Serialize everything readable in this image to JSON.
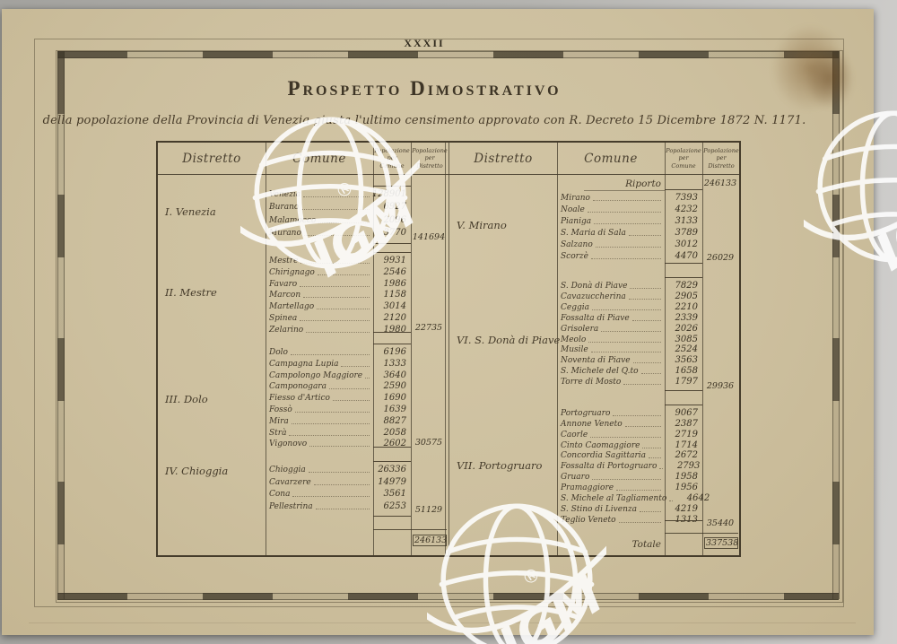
{
  "scan": {
    "page_number_label": "XXXII",
    "title": "Prospetto Dimostrativo",
    "subtitle": "della popolazione della Provincia di Venezia giusta l'ultimo censimento approvato con R. Decreto 15 Dicembre 1872 N. 1171.",
    "watermark_text": "IGM",
    "watermark_reg": "®"
  },
  "table": {
    "column_headers": {
      "distretto": "Distretto",
      "comune": "Comune",
      "pop_comune_lines": [
        "Popolazione",
        "per",
        "Comune"
      ],
      "pop_distretto_lines": [
        "Popolazione",
        "per",
        "Distretto"
      ]
    },
    "left": {
      "groups": [
        {
          "district": "I. Venezia",
          "rows": [
            [
              "Venezia",
              "128901"
            ],
            [
              "Burano",
              "6927"
            ],
            [
              "Malamocco",
              "2096"
            ],
            [
              "Murano",
              "3770"
            ]
          ],
          "total": "141694"
        },
        {
          "district": "II. Mestre",
          "rows": [
            [
              "Mestre",
              "9931"
            ],
            [
              "Chirignago",
              "2546"
            ],
            [
              "Favaro",
              "1986"
            ],
            [
              "Marcon",
              "1158"
            ],
            [
              "Martellago",
              "3014"
            ],
            [
              "Spinea",
              "2120"
            ],
            [
              "Zelarino",
              "1980"
            ]
          ],
          "total": "22735"
        },
        {
          "district": "III. Dolo",
          "rows": [
            [
              "Dolo",
              "6196"
            ],
            [
              "Campagna Lupia",
              "1333"
            ],
            [
              "Campolongo Maggiore",
              "3640"
            ],
            [
              "Camponogara",
              "2590"
            ],
            [
              "Fiesso d'Artico",
              "1690"
            ],
            [
              "Fossò",
              "1639"
            ],
            [
              "Mira",
              "8827"
            ],
            [
              "Strà",
              "2058"
            ],
            [
              "Vigonovo",
              "2602"
            ]
          ],
          "total": "30575"
        },
        {
          "district": "IV. Chioggia",
          "rows": [
            [
              "Chioggia",
              "26336"
            ],
            [
              "Cavarzere",
              "14979"
            ],
            [
              "Cona",
              "3561"
            ],
            [
              "Pellestrina",
              "6253"
            ]
          ],
          "total": "51129"
        }
      ],
      "grand_total": "246133"
    },
    "right": {
      "riporto_label": "Riporto",
      "riporto_value": "246133",
      "groups": [
        {
          "district": "V. Mirano",
          "rows": [
            [
              "Mirano",
              "7393"
            ],
            [
              "Noale",
              "4232"
            ],
            [
              "Pianiga",
              "3133"
            ],
            [
              "S. Maria di Sala",
              "3789"
            ],
            [
              "Salzano",
              "3012"
            ],
            [
              "Scorzè",
              "4470"
            ]
          ],
          "total": "26029"
        },
        {
          "district": "VI. S. Donà di Piave",
          "rows": [
            [
              "S. Donà di Piave",
              "7829"
            ],
            [
              "Cavazuccherina",
              "2905"
            ],
            [
              "Ceggia",
              "2210"
            ],
            [
              "Fossalta di Piave",
              "2339"
            ],
            [
              "Grisolera",
              "2026"
            ],
            [
              "Meolo",
              "3085"
            ],
            [
              "Musile",
              "2524"
            ],
            [
              "Noventa di Piave",
              "3563"
            ],
            [
              "S. Michele del Q.to",
              "1658"
            ],
            [
              "Torre di Mosto",
              "1797"
            ]
          ],
          "total": "29936"
        },
        {
          "district": "VII. Portogruaro",
          "rows": [
            [
              "Portogruaro",
              "9067"
            ],
            [
              "Annone Veneto",
              "2387"
            ],
            [
              "Caorle",
              "2719"
            ],
            [
              "Cinto Caomaggiore",
              "1714"
            ],
            [
              "Concordia Sagittaria",
              "2672"
            ],
            [
              "Fossalta di Portogruaro",
              "2793"
            ],
            [
              "Gruaro",
              "1958"
            ],
            [
              "Pramaggiore",
              "1956"
            ],
            [
              "S. Michele al Tagliamento",
              "4642"
            ],
            [
              "S. Stino di Livenza",
              "4219"
            ],
            [
              "Teglio Veneto",
              "1313"
            ]
          ],
          "total": "35440"
        }
      ],
      "totale_label": "Totale",
      "totale_value": "337538"
    }
  }
}
